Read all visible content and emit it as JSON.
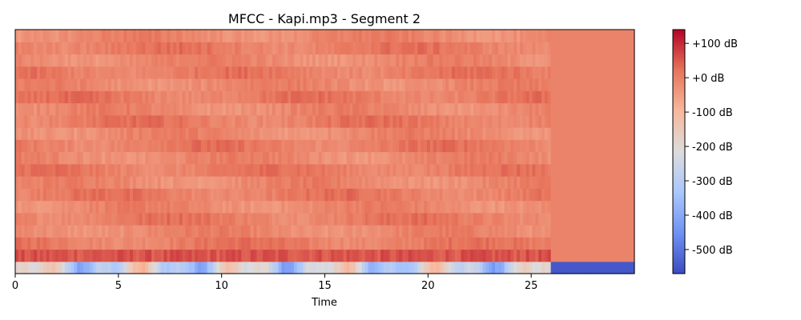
{
  "chart_data": {
    "type": "heatmap",
    "title": "MFCC - Kapi.mp3 - Segment 2",
    "xlabel": "Time",
    "ylabel": "",
    "xlim": [
      0,
      30
    ],
    "x_ticks": [
      0,
      5,
      10,
      15,
      20,
      25
    ],
    "x_tick_labels": [
      "0",
      "5",
      "10",
      "15",
      "20",
      "25"
    ],
    "y_ticks_shown": false,
    "n_coefficients": 20,
    "signal_end_time": 26.0,
    "colormap": "coolwarm",
    "colormap_stops": [
      "#3b4cc0",
      "#6f92f3",
      "#aac7fd",
      "#dddcdc",
      "#f7b89c",
      "#e7745b",
      "#b40426"
    ],
    "colorbar": {
      "range": [
        -570,
        140
      ],
      "ticks": [
        100,
        0,
        -100,
        -200,
        -300,
        -400,
        -500
      ],
      "tick_labels": [
        "+100 dB",
        "+0 dB",
        "-100 dB",
        "-200 dB",
        "-300 dB",
        "-400 dB",
        "-500 dB"
      ],
      "placement": "right"
    },
    "silence_value": -5,
    "silence_row0_value": -550
  }
}
